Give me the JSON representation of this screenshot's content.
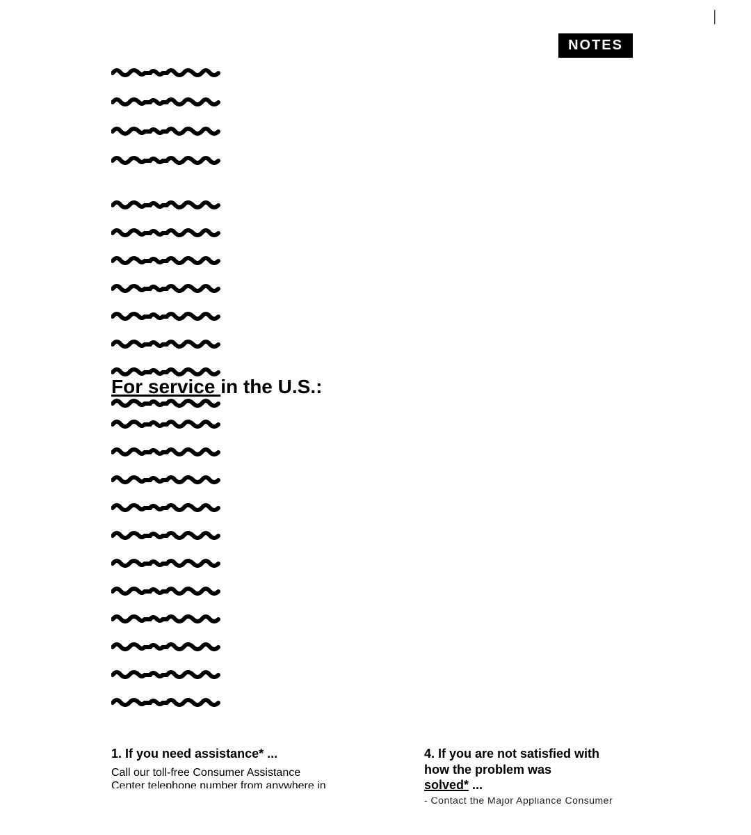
{
  "colors": {
    "ink": "#000000",
    "paper": "#ffffff"
  },
  "topRightMark": "|",
  "notesBadge": "NOTES",
  "squiggle": {
    "widthPx": 180,
    "strokeWidth": 6,
    "color": "#000000",
    "groups": [
      {
        "count": 4,
        "topPx": 95,
        "rowHeightPx": 42
      },
      {
        "count": 7,
        "topPx": 285,
        "rowHeightPx": 40
      },
      {
        "count": 11,
        "topPx": 600,
        "rowHeightPx": 40
      }
    ]
  },
  "heading": {
    "underlined": "For service ",
    "rest": "in the U.S.:"
  },
  "footer": {
    "left": {
      "heading": "1.  If you need assistance* ...",
      "body_line1": "Call our toll-free Consumer Assistance",
      "body_line2_cut": "Center telephone number from anywhere in"
    },
    "right": {
      "heading_line1": "4.  If you are not satisfied with",
      "heading_line2": "how the problem was",
      "heading_underlined": "solved*",
      "heading_tail": " ...",
      "cut_line": "-  Contact the Major Appliance Consumer"
    }
  }
}
